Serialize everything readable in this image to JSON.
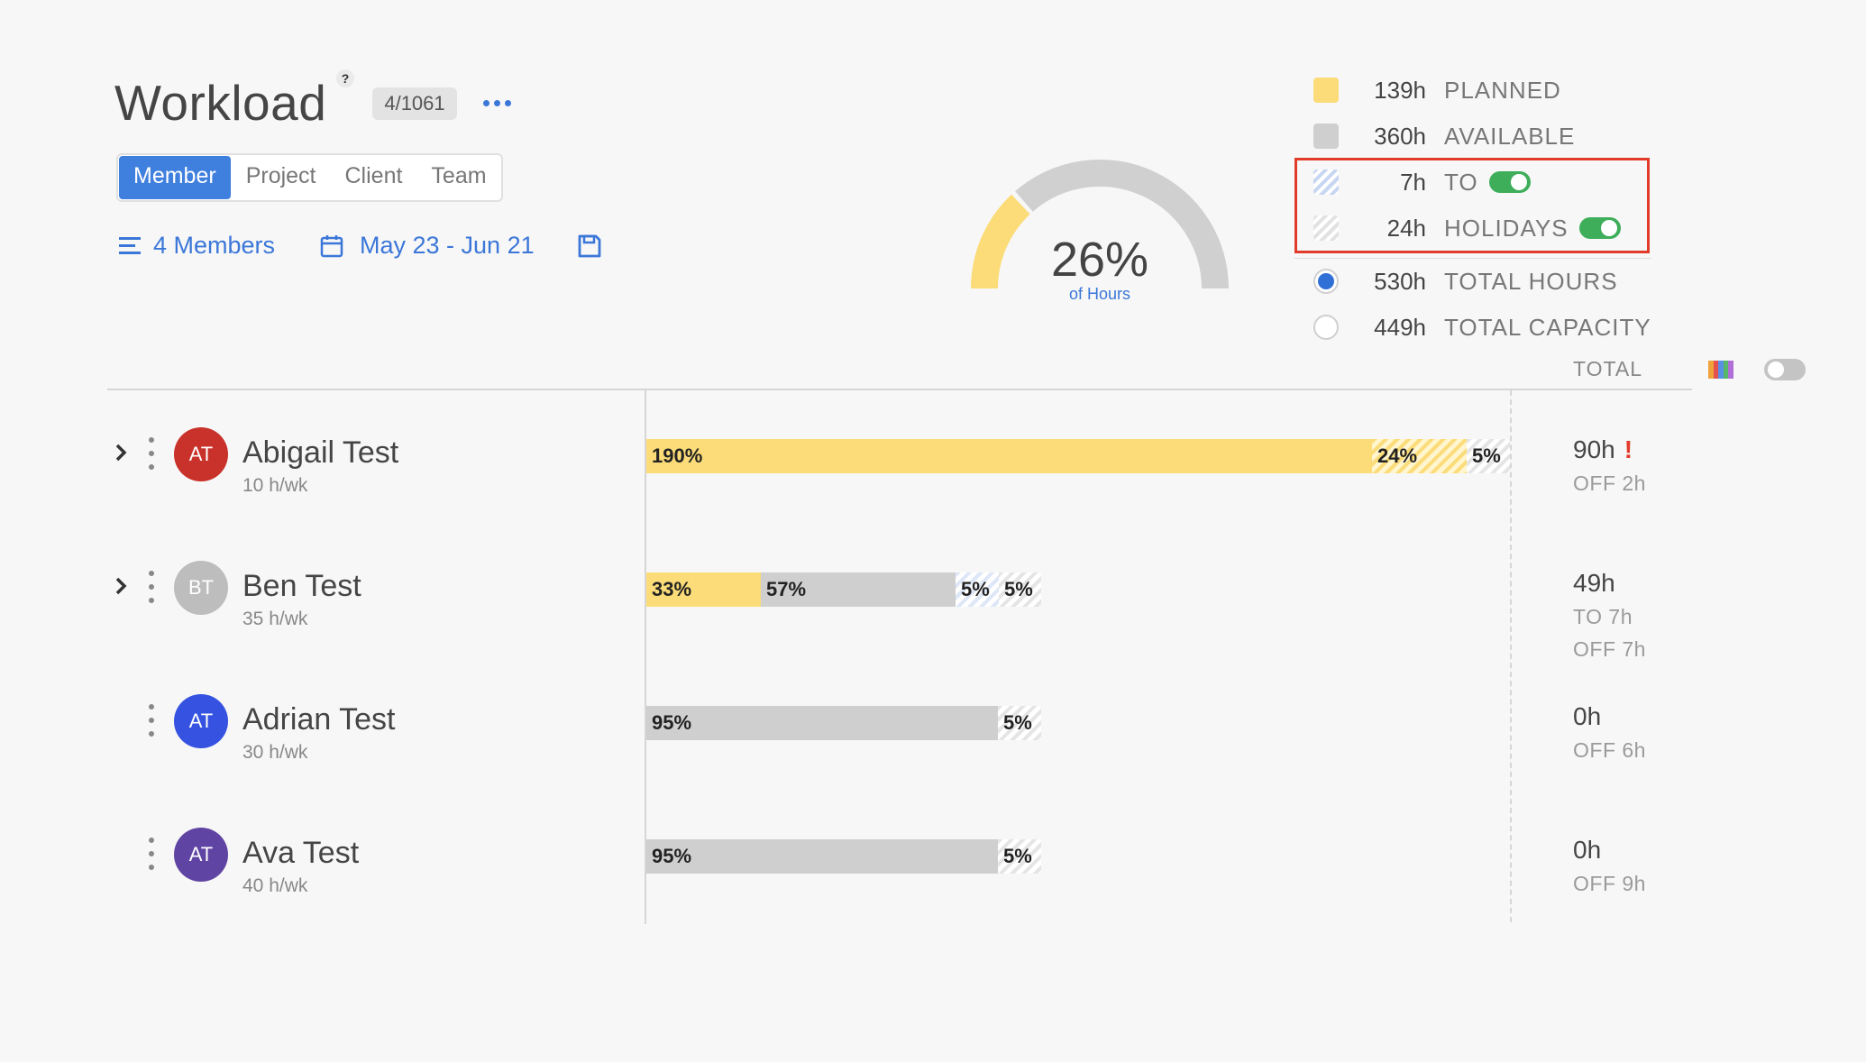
{
  "header": {
    "title": "Workload",
    "help": "?",
    "count_badge": "4/1061"
  },
  "tabs": [
    {
      "label": "Member",
      "active": true
    },
    {
      "label": "Project",
      "active": false
    },
    {
      "label": "Client",
      "active": false
    },
    {
      "label": "Team",
      "active": false
    }
  ],
  "filters": {
    "members_label": "4 Members",
    "date_range": "May 23 - Jun 21"
  },
  "gauge": {
    "percent_label": "26%",
    "subtitle": "of Hours",
    "fraction": 0.26
  },
  "legend": {
    "planned": {
      "value": "139h",
      "label": "PLANNED",
      "color": "#fbdc78"
    },
    "available": {
      "value": "360h",
      "label": "AVAILABLE",
      "color": "#cfcfcf"
    },
    "to": {
      "value": "7h",
      "label": "TO",
      "toggle_on": true
    },
    "holidays": {
      "value": "24h",
      "label": "HOLIDAYS",
      "toggle_on": true
    },
    "total_hours": {
      "value": "530h",
      "label": "TOTAL HOURS",
      "color": "#2f6fd6"
    },
    "total_capacity": {
      "value": "449h",
      "label": "TOTAL CAPACITY"
    }
  },
  "total_header": "TOTAL",
  "members": [
    {
      "initials": "AT",
      "name": "Abigail Test",
      "rate": "10 h/wk",
      "avatar_color": "#c8322a",
      "expandable": true,
      "bar_segments": [
        {
          "type": "planned",
          "label": "190%",
          "fraction": 0.84
        },
        {
          "type": "over",
          "label": "24%",
          "fraction": 0.11
        },
        {
          "type": "holiday",
          "label": "5%",
          "fraction": 0.05
        }
      ],
      "total": "90h",
      "warning": "!",
      "lines": [
        "OFF 2h"
      ]
    },
    {
      "initials": "BT",
      "name": "Ben Test",
      "rate": "35 h/wk",
      "avatar_color": "#bdbdbd",
      "expandable": true,
      "bar_segments": [
        {
          "type": "planned",
          "label": "33%",
          "fraction": 0.133
        },
        {
          "type": "available",
          "label": "57%",
          "fraction": 0.225
        },
        {
          "type": "to",
          "label": "5%",
          "fraction": 0.05
        },
        {
          "type": "holiday",
          "label": "5%",
          "fraction": 0.049
        }
      ],
      "total": "49h",
      "warning": "",
      "lines": [
        "TO 7h",
        "OFF 7h"
      ]
    },
    {
      "initials": "AT",
      "name": "Adrian Test",
      "rate": "30 h/wk",
      "avatar_color": "#3552e0",
      "expandable": false,
      "bar_segments": [
        {
          "type": "available",
          "label": "95%",
          "fraction": 0.407
        },
        {
          "type": "holiday",
          "label": "5%",
          "fraction": 0.05
        }
      ],
      "total": "0h",
      "warning": "",
      "lines": [
        "OFF 6h"
      ]
    },
    {
      "initials": "AT",
      "name": "Ava Test",
      "rate": "40 h/wk",
      "avatar_color": "#6044a3",
      "expandable": false,
      "bar_segments": [
        {
          "type": "available",
          "label": "95%",
          "fraction": 0.407
        },
        {
          "type": "holiday",
          "label": "5%",
          "fraction": 0.05
        }
      ],
      "total": "0h",
      "warning": "",
      "lines": [
        "OFF 9h"
      ]
    }
  ]
}
